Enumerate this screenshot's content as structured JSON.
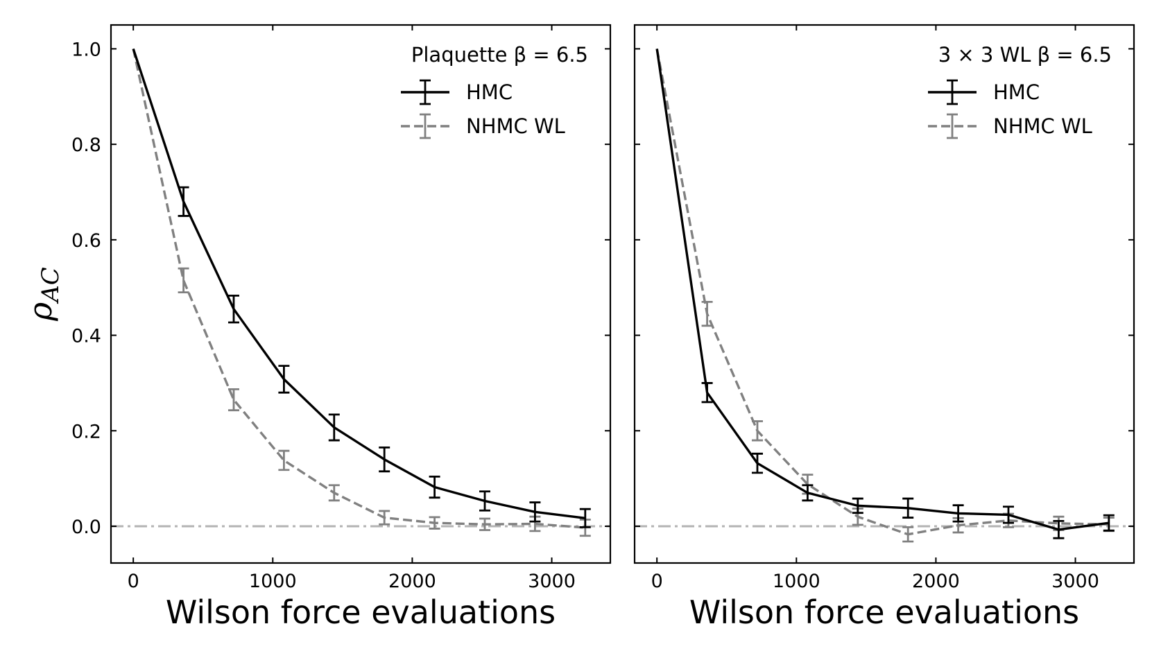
{
  "chart_data": [
    {
      "type": "line",
      "panel": "left",
      "title": "Plaquette β = 6.5",
      "xlabel": "Wilson force evaluations",
      "ylabel": "ρ_AC",
      "ylabel_main": "ρ",
      "ylabel_sub": "AC",
      "xlim": [
        -160,
        3420
      ],
      "ylim": [
        -0.077,
        1.05
      ],
      "xticks": [
        0,
        1000,
        2000,
        3000
      ],
      "xtick_labels": [
        "0",
        "1000",
        "2000",
        "3000"
      ],
      "yticks": [
        0.0,
        0.2,
        0.4,
        0.6,
        0.8,
        1.0
      ],
      "ytick_labels": [
        "0.0",
        "0.2",
        "0.4",
        "0.6",
        "0.8",
        "1.0"
      ],
      "reference_line": 0.0,
      "legend_position": "top-right",
      "series": [
        {
          "name": "HMC",
          "color": "#000000",
          "dashed": false,
          "x": [
            0,
            360,
            720,
            1080,
            1440,
            1800,
            2160,
            2520,
            2880,
            3240
          ],
          "y": [
            1.0,
            0.68,
            0.455,
            0.308,
            0.207,
            0.14,
            0.082,
            0.053,
            0.03,
            0.017
          ],
          "err": [
            0.0,
            0.03,
            0.028,
            0.028,
            0.027,
            0.025,
            0.022,
            0.02,
            0.02,
            0.019
          ]
        },
        {
          "name": "NHMC WL",
          "color": "#808080",
          "dashed": true,
          "x": [
            0,
            360,
            720,
            1080,
            1440,
            1800,
            2160,
            2520,
            2880,
            3240
          ],
          "y": [
            1.0,
            0.515,
            0.265,
            0.138,
            0.07,
            0.018,
            0.007,
            0.004,
            0.005,
            -0.003
          ],
          "err": [
            0.0,
            0.025,
            0.022,
            0.02,
            0.016,
            0.014,
            0.012,
            0.012,
            0.015,
            0.017
          ]
        }
      ]
    },
    {
      "type": "line",
      "panel": "right",
      "title": "3 × 3 WL β = 6.5",
      "xlabel": "Wilson force evaluations",
      "xlim": [
        -160,
        3420
      ],
      "ylim": [
        -0.077,
        1.05
      ],
      "xticks": [
        0,
        1000,
        2000,
        3000
      ],
      "xtick_labels": [
        "0",
        "1000",
        "2000",
        "3000"
      ],
      "yticks": [
        0.0,
        0.2,
        0.4,
        0.6,
        0.8,
        1.0
      ],
      "reference_line": 0.0,
      "legend_position": "top-right",
      "series": [
        {
          "name": "HMC",
          "color": "#000000",
          "dashed": false,
          "x": [
            0,
            360,
            720,
            1080,
            1440,
            1800,
            2160,
            2520,
            2880,
            3240
          ],
          "y": [
            1.0,
            0.28,
            0.132,
            0.07,
            0.043,
            0.038,
            0.027,
            0.024,
            -0.007,
            0.007
          ],
          "err": [
            0.0,
            0.02,
            0.02,
            0.016,
            0.015,
            0.02,
            0.017,
            0.017,
            0.018,
            0.016
          ]
        },
        {
          "name": "NHMC WL",
          "color": "#808080",
          "dashed": true,
          "x": [
            0,
            360,
            720,
            1080,
            1440,
            1800,
            2160,
            2520,
            2880,
            3240
          ],
          "y": [
            1.0,
            0.445,
            0.2,
            0.088,
            0.02,
            -0.017,
            0.002,
            0.012,
            0.006,
            0.004
          ],
          "err": [
            0.0,
            0.025,
            0.02,
            0.02,
            0.017,
            0.015,
            0.015,
            0.014,
            0.014,
            0.014
          ]
        }
      ]
    }
  ]
}
